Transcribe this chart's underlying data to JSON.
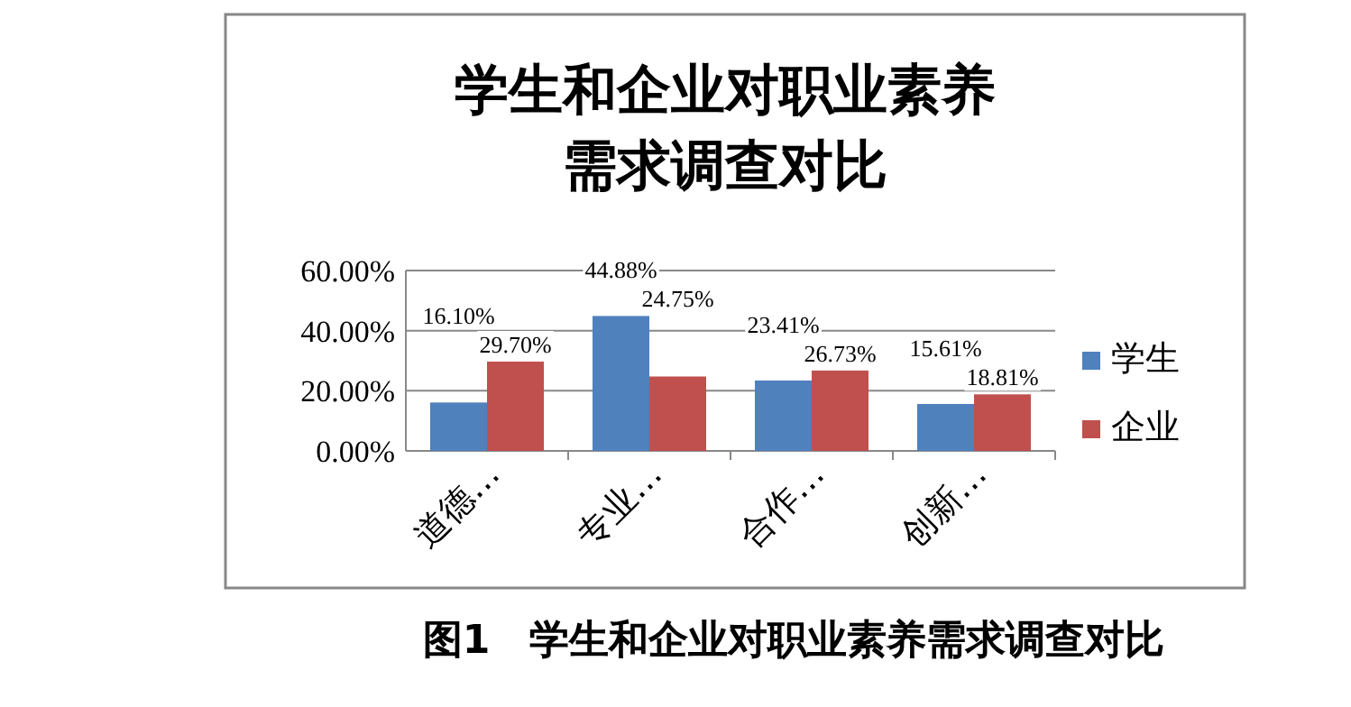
{
  "chart_data": {
    "type": "bar",
    "title": "学生和企业对职业素养需求调查对比",
    "categories": [
      "道德…",
      "专业…",
      "合作…",
      "创新…"
    ],
    "series": [
      {
        "name": "学生",
        "color": "#4f81bd",
        "values": [
          16.1,
          44.88,
          23.41,
          15.61
        ],
        "value_labels": [
          "16.10%",
          "44.88%",
          "23.41%",
          "15.61%"
        ]
      },
      {
        "name": "企业",
        "color": "#c0504d",
        "values": [
          29.7,
          24.75,
          26.73,
          18.81
        ],
        "value_labels": [
          "29.70%",
          "24.75%",
          "26.73%",
          "18.81%"
        ]
      }
    ],
    "ylim": [
      0,
      60
    ],
    "yticks": [
      {
        "value": 0,
        "label": "0.00%"
      },
      {
        "value": 20,
        "label": "20.00%"
      },
      {
        "value": 40,
        "label": "40.00%"
      },
      {
        "value": 60,
        "label": "60.00%"
      }
    ],
    "grid": "y",
    "legend": "right",
    "annotations": [
      "图1　学生和企业对职业素养需求调查对比"
    ]
  }
}
